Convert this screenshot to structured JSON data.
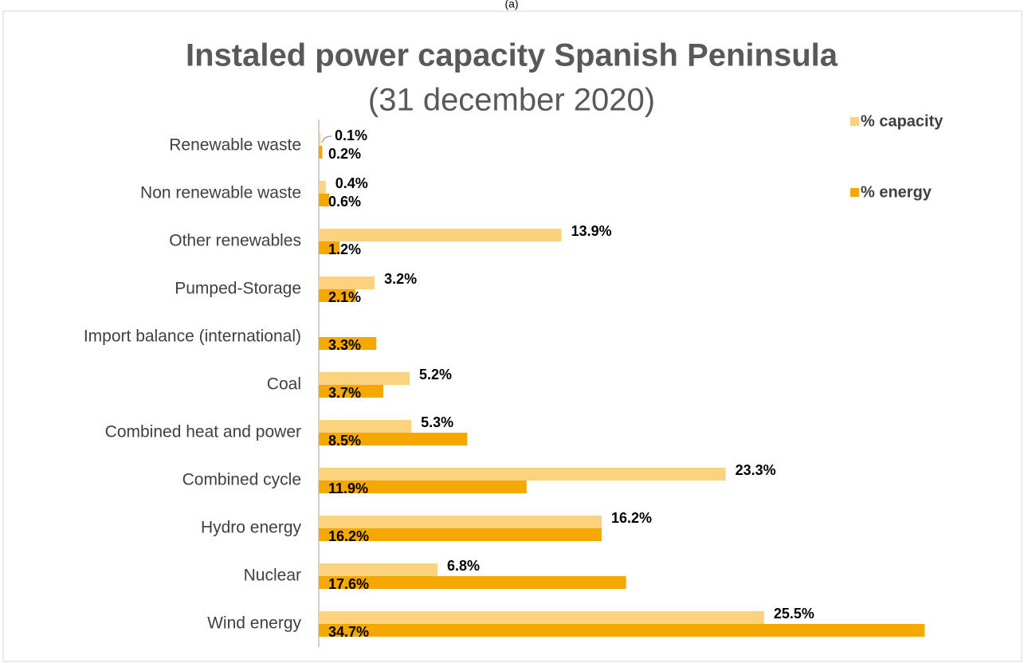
{
  "chart_data": {
    "type": "hbar",
    "caption": "(a)",
    "title": "Instaled power capacity Spanish Peninsula",
    "subtitle": "(31 december 2020)",
    "categories": [
      "Renewable waste",
      "Non renewable waste",
      "Other renewables",
      "Pumped-Storage",
      "Import balance (international)",
      "Coal",
      "Combined heat and power",
      "Combined cycle",
      "Hydro energy",
      "Nuclear",
      "Wind energy"
    ],
    "series": [
      {
        "name": "% capacity",
        "color": "#fdd27f",
        "values": [
          0.1,
          0.4,
          13.9,
          3.2,
          null,
          5.2,
          5.3,
          23.3,
          16.2,
          6.8,
          25.5
        ],
        "value_labels": [
          "0.1%",
          "0.4%",
          "13.9%",
          "3.2%",
          null,
          "5.2%",
          "5.3%",
          "23.3%",
          "16.2%",
          "6.8%",
          "25.5%"
        ]
      },
      {
        "name": "% energy",
        "color": "#f5a800",
        "values": [
          0.2,
          0.6,
          1.2,
          2.1,
          3.3,
          3.7,
          8.5,
          11.9,
          16.2,
          17.6,
          34.7
        ],
        "value_labels": [
          "0.2%",
          "0.6%",
          "1.2%",
          "2.1%",
          "3.3%",
          "3.7%",
          "8.5%",
          "11.9%",
          "16.2%",
          "17.6%",
          "34.7%"
        ]
      }
    ],
    "xlim": [
      0,
      35
    ],
    "legend": "top-right"
  }
}
